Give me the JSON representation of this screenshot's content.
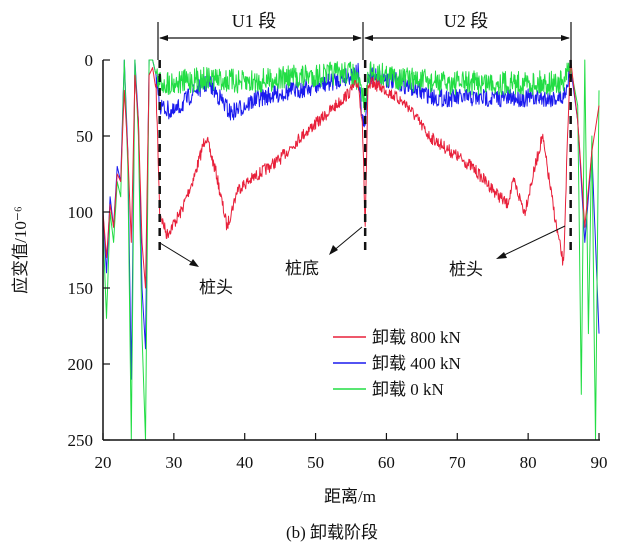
{
  "chart_data": {
    "type": "line",
    "title": "",
    "caption": "(b)  卸载阶段",
    "xlabel": "距离/m",
    "ylabel": "应变值/10⁻⁶",
    "xlim": [
      20,
      90
    ],
    "ylim": [
      0,
      250
    ],
    "y_inverted": true,
    "xticks": [
      "20",
      "30",
      "40",
      "50",
      "60",
      "70",
      "80",
      "90"
    ],
    "yticks": [
      "0",
      "50",
      "100",
      "150",
      "200",
      "250"
    ],
    "grid": false,
    "legend_position": "center-right",
    "annotations": {
      "u1": "U1 段",
      "u2": "U2 段",
      "pile_head_left": "桩头",
      "pile_bottom": "桩底",
      "pile_head_right": "桩头",
      "dashed_lines_x": [
        28,
        57,
        86
      ]
    },
    "series": [
      {
        "name": "卸载 800 kN",
        "color": "#e8203a",
        "noise": 4,
        "x": [
          20,
          20.5,
          21,
          21.5,
          22,
          22.5,
          23,
          23.5,
          24,
          24.5,
          25,
          25.5,
          26,
          26.5,
          27,
          27.5,
          28,
          29,
          31,
          33,
          34.5,
          36,
          37.5,
          39,
          42,
          45,
          48,
          51,
          54,
          56,
          56.6,
          57,
          57.4,
          58,
          60,
          63,
          66,
          69,
          72,
          75,
          77,
          78,
          79.5,
          81,
          82,
          83,
          84,
          85,
          85.5,
          86,
          87,
          88,
          89,
          90
        ],
        "y": [
          100,
          130,
          95,
          110,
          75,
          80,
          20,
          60,
          120,
          10,
          40,
          120,
          150,
          10,
          5,
          20,
          100,
          115,
          100,
          75,
          50,
          75,
          110,
          85,
          75,
          65,
          50,
          38,
          25,
          15,
          40,
          110,
          20,
          15,
          20,
          30,
          50,
          60,
          70,
          85,
          95,
          80,
          100,
          70,
          50,
          80,
          110,
          135,
          60,
          0,
          40,
          110,
          60,
          30
        ]
      },
      {
        "name": "卸载 400 kN",
        "color": "#1a1aee",
        "noise": 6,
        "x": [
          20,
          20.5,
          21,
          21.5,
          22,
          22.5,
          23,
          23.5,
          24,
          24.5,
          25,
          25.5,
          26,
          26.5,
          27,
          27.5,
          28,
          30,
          33,
          35,
          38,
          42,
          47,
          52,
          56,
          56.6,
          57,
          57.4,
          58,
          62,
          67,
          72,
          77,
          82,
          85,
          86,
          87,
          88,
          89,
          90
        ],
        "y": [
          100,
          140,
          90,
          110,
          70,
          80,
          0,
          60,
          210,
          0,
          40,
          150,
          190,
          0,
          0,
          10,
          30,
          35,
          20,
          15,
          35,
          25,
          20,
          15,
          8,
          40,
          45,
          10,
          10,
          15,
          25,
          25,
          25,
          25,
          25,
          5,
          40,
          120,
          60,
          180
        ]
      },
      {
        "name": "卸载 0 kN",
        "color": "#22dd44",
        "noise": 8,
        "x": [
          20,
          20.5,
          21,
          21.5,
          22,
          22.5,
          23,
          23.5,
          24,
          24.5,
          25,
          25.5,
          26,
          26.5,
          27,
          27.5,
          28,
          30,
          35,
          40,
          45,
          50,
          55,
          56.5,
          57,
          57.5,
          58,
          62,
          67,
          72,
          77,
          82,
          85,
          86,
          87,
          87.5,
          88,
          88.5,
          89,
          89.5,
          90
        ],
        "y": [
          110,
          170,
          100,
          120,
          80,
          90,
          0,
          70,
          250,
          0,
          50,
          180,
          250,
          0,
          0,
          10,
          15,
          15,
          12,
          15,
          12,
          10,
          8,
          20,
          30,
          10,
          8,
          12,
          15,
          15,
          15,
          15,
          15,
          5,
          30,
          220,
          0,
          180,
          50,
          250,
          20
        ]
      }
    ]
  }
}
